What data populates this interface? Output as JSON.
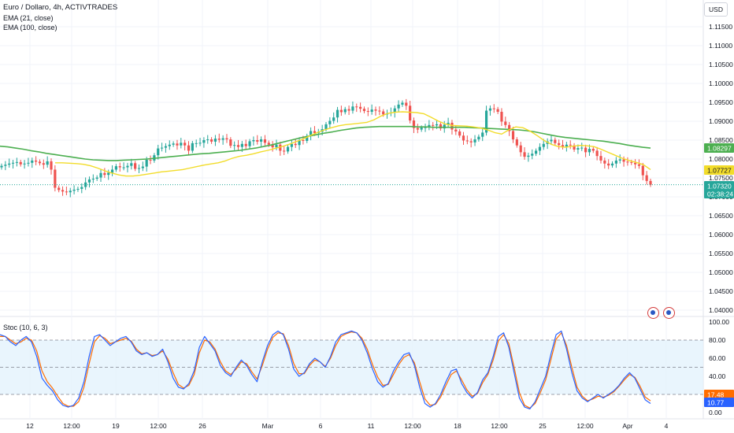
{
  "header": {
    "symbol_line": "Euro / Dollaro, 4h, ACTIVTRADES",
    "indicator_1": "EMA (21, close)",
    "indicator_2": "EMA (100, close)",
    "currency": "USD",
    "stoc_label": "Stoc (10, 6, 3)"
  },
  "colors": {
    "up": "#26a69a",
    "down": "#ef5350",
    "ema21": "#f2dc2a",
    "ema100": "#4caf50",
    "stoc_k": "#2962ff",
    "stoc_d": "#ff6d00",
    "band_fill": "#e3f2fd"
  },
  "chart_data": [
    {
      "type": "candlestick",
      "title": "Euro / Dollaro, 4h, ACTIVTRADES",
      "y_axis": {
        "min": 1.035,
        "max": 1.12,
        "ticks": [
          "1.11500",
          "1.11000",
          "1.10500",
          "1.10000",
          "1.09500",
          "1.09000",
          "1.08500",
          "1.08000",
          "1.07500",
          "1.07000",
          "1.06500",
          "1.06000",
          "1.05500",
          "1.05000",
          "1.04500",
          "1.04000"
        ],
        "tick_values": [
          1.115,
          1.11,
          1.105,
          1.1,
          1.095,
          1.09,
          1.085,
          1.08,
          1.075,
          1.07,
          1.065,
          1.06,
          1.055,
          1.05,
          1.045,
          1.04
        ]
      },
      "x_axis": {
        "labels": [
          "12",
          "12:00",
          "19",
          "12:00",
          "26",
          "Mar",
          "6",
          "11",
          "12:00",
          "18",
          "12:00",
          "25",
          "12:00",
          "Apr",
          "4"
        ],
        "label_index": [
          2,
          8,
          13,
          18,
          23,
          29,
          35,
          40,
          46,
          51,
          56,
          61,
          66,
          71,
          76
        ]
      },
      "ohlc_close_path": [
        1.0782,
        1.0785,
        1.0788,
        1.079,
        1.0792,
        1.0786,
        1.0788,
        1.079,
        1.0796,
        1.0793,
        1.0789,
        1.0785,
        1.0794,
        1.0772,
        1.0724,
        1.0718,
        1.0714,
        1.0712,
        1.0716,
        1.0719,
        1.0721,
        1.0726,
        1.0738,
        1.0746,
        1.0748,
        1.0751,
        1.0763,
        1.0758,
        1.0764,
        1.0772,
        1.0781,
        1.0778,
        1.0778,
        1.0782,
        1.0789,
        1.0774,
        1.0776,
        1.078,
        1.0798,
        1.0796,
        1.081,
        1.0828,
        1.083,
        1.0834,
        1.0838,
        1.0841,
        1.0836,
        1.0843,
        1.0836,
        1.0822,
        1.0842,
        1.0842,
        1.0843,
        1.085,
        1.0852,
        1.0846,
        1.0854,
        1.0851,
        1.0855,
        1.0852,
        1.0835,
        1.0837,
        1.0832,
        1.084,
        1.0834,
        1.0847,
        1.085,
        1.0846,
        1.0852,
        1.0843,
        1.0838,
        1.0831,
        1.0838,
        1.0822,
        1.082,
        1.0832,
        1.084,
        1.0837,
        1.085,
        1.0848,
        1.0861,
        1.0874,
        1.0869,
        1.0872,
        1.0879,
        1.0892,
        1.0901,
        1.091,
        1.093,
        1.0924,
        1.0932,
        1.0928,
        1.0939,
        1.0938,
        1.0933,
        1.0927,
        1.0925,
        1.0931,
        1.0928,
        1.0926,
        1.0918,
        1.0921,
        1.0923,
        1.0934,
        1.0944,
        1.0949,
        1.0941,
        1.0902,
        1.0882,
        1.0878,
        1.0883,
        1.0884,
        1.089,
        1.0889,
        1.0892,
        1.0881,
        1.0891,
        1.0896,
        1.0878,
        1.0873,
        1.0862,
        1.0849,
        1.0847,
        1.0844,
        1.0852,
        1.0859,
        1.087,
        1.0928,
        1.0934,
        1.0932,
        1.0925,
        1.0899,
        1.089,
        1.0874,
        1.0852,
        1.0836,
        1.0818,
        1.0806,
        1.0809,
        1.0814,
        1.0822,
        1.0832,
        1.084,
        1.0847,
        1.0851,
        1.0842,
        1.0837,
        1.0833,
        1.0838,
        1.0836,
        1.0825,
        1.0829,
        1.083,
        1.0818,
        1.0827,
        1.0822,
        1.0808,
        1.0796,
        1.0788,
        1.0783,
        1.0788,
        1.0796,
        1.0799,
        1.0793,
        1.0792,
        1.079,
        1.0786,
        1.0782,
        1.0757,
        1.0742,
        1.0732
      ],
      "series": [
        {
          "name": "EMA (21, close)",
          "values": [
            1.079,
            1.079,
            1.0789,
            1.0788,
            1.0786,
            1.0782,
            1.0776,
            1.0769,
            1.0763,
            1.0758,
            1.0755,
            1.0755,
            1.0757,
            1.076,
            1.0763,
            1.0766,
            1.0768,
            1.077,
            1.0772,
            1.0776,
            1.078,
            1.0784,
            1.0787,
            1.079,
            1.0795,
            1.0802,
            1.0807,
            1.081,
            1.0814,
            1.0819,
            1.0823,
            1.0828,
            1.0833,
            1.0839,
            1.0846,
            1.0853,
            1.0862,
            1.087,
            1.0877,
            1.0883,
            1.0888,
            1.0891,
            1.0893,
            1.0895,
            1.0897,
            1.0904,
            1.0914,
            1.0921,
            1.0924,
            1.0925,
            1.0924,
            1.0923,
            1.092,
            1.0911,
            1.0901,
            1.0893,
            1.0889,
            1.0888,
            1.0887,
            1.0885,
            1.0882,
            1.0877,
            1.087,
            1.0866,
            1.0877,
            1.0885,
            1.0883,
            1.0874,
            1.0862,
            1.0849,
            1.0839,
            1.0833,
            1.0831,
            1.0834,
            1.0836,
            1.0835,
            1.0833,
            1.0826,
            1.0818,
            1.081,
            1.0802,
            1.0796,
            1.0791,
            1.0785,
            1.0772
          ]
        },
        {
          "name": "EMA (100, close)",
          "values": [
            1.0834,
            1.0832,
            1.0829,
            1.0826,
            1.0822,
            1.0819,
            1.0815,
            1.0812,
            1.0809,
            1.0806,
            1.0803,
            1.08,
            1.0798,
            1.0797,
            1.0796,
            1.0796,
            1.0797,
            1.0798,
            1.0799,
            1.08,
            1.0802,
            1.0804,
            1.0806,
            1.0808,
            1.081,
            1.0812,
            1.0814,
            1.0815,
            1.0817,
            1.0819,
            1.0821,
            1.0823,
            1.0826,
            1.0829,
            1.0833,
            1.0837,
            1.0842,
            1.0847,
            1.0852,
            1.0857,
            1.0861,
            1.0865,
            1.0869,
            1.0872,
            1.0876,
            1.0879,
            1.0882,
            1.0884,
            1.0885,
            1.0886,
            1.0886,
            1.0886,
            1.0886,
            1.0886,
            1.0885,
            1.0885,
            1.0884,
            1.0884,
            1.0884,
            1.0884,
            1.0884,
            1.0883,
            1.0882,
            1.0881,
            1.088,
            1.0879,
            1.0878,
            1.0877,
            1.0875,
            1.0872,
            1.0868,
            1.0864,
            1.086,
            1.0857,
            1.0855,
            1.0853,
            1.0851,
            1.0849,
            1.0847,
            1.0844,
            1.0841,
            1.0837,
            1.0834,
            1.0831,
            1.0829
          ]
        }
      ],
      "price_labels": [
        {
          "text": "1.08297",
          "value": 1.08297,
          "color": "#4caf50"
        },
        {
          "text": "1.07727",
          "value": 1.07727,
          "color": "#f2dc2a"
        },
        {
          "text": "1.07320",
          "value": 1.0732,
          "color": "#26a69a"
        },
        {
          "text": "02:38:24",
          "value": 1.0728,
          "color": "#26a69a"
        }
      ],
      "last_price": 1.0732
    },
    {
      "type": "line",
      "title": "Stoc (10, 6, 3)",
      "y_axis": {
        "min": 0,
        "max": 100,
        "ticks": [
          "100.00",
          "80.00",
          "60.00",
          "40.00",
          "20.00",
          "0.00"
        ],
        "tick_values": [
          100,
          80,
          60,
          40,
          20,
          0
        ]
      },
      "bands": [
        80,
        50,
        20
      ],
      "series": [
        {
          "name": "%K",
          "values": [
            86,
            84,
            78,
            74,
            80,
            84,
            78,
            62,
            38,
            30,
            24,
            14,
            8,
            6,
            8,
            16,
            34,
            62,
            84,
            86,
            80,
            74,
            78,
            82,
            84,
            78,
            68,
            64,
            66,
            62,
            64,
            70,
            56,
            38,
            28,
            26,
            32,
            46,
            72,
            84,
            76,
            68,
            52,
            44,
            40,
            50,
            58,
            52,
            42,
            34,
            56,
            74,
            86,
            90,
            86,
            70,
            48,
            40,
            44,
            54,
            60,
            56,
            50,
            62,
            78,
            86,
            88,
            90,
            88,
            80,
            66,
            48,
            34,
            28,
            32,
            46,
            56,
            64,
            66,
            52,
            28,
            10,
            6,
            10,
            20,
            34,
            46,
            48,
            32,
            22,
            16,
            22,
            36,
            44,
            62,
            84,
            88,
            72,
            44,
            16,
            6,
            4,
            12,
            26,
            40,
            64,
            86,
            90,
            70,
            44,
            24,
            16,
            12,
            16,
            20,
            16,
            20,
            24,
            30,
            38,
            44,
            38,
            26,
            14,
            10
          ]
        },
        {
          "name": "%D",
          "values": [
            84,
            84,
            80,
            76,
            78,
            82,
            80,
            68,
            46,
            34,
            27,
            18,
            10,
            7,
            7,
            12,
            28,
            54,
            78,
            85,
            82,
            76,
            78,
            80,
            82,
            79,
            70,
            65,
            66,
            63,
            64,
            68,
            59,
            44,
            31,
            27,
            30,
            42,
            66,
            80,
            78,
            70,
            56,
            46,
            42,
            48,
            56,
            54,
            45,
            37,
            52,
            70,
            83,
            88,
            87,
            74,
            54,
            43,
            43,
            52,
            58,
            56,
            51,
            60,
            74,
            84,
            87,
            89,
            88,
            82,
            70,
            53,
            39,
            30,
            31,
            42,
            53,
            61,
            64,
            55,
            34,
            15,
            8,
            9,
            17,
            30,
            42,
            46,
            36,
            25,
            18,
            21,
            33,
            42,
            58,
            79,
            86,
            76,
            50,
            22,
            8,
            5,
            10,
            22,
            36,
            58,
            81,
            88,
            74,
            50,
            28,
            18,
            13,
            15,
            18,
            17,
            19,
            23,
            29,
            36,
            42,
            39,
            29,
            17,
            13
          ]
        }
      ],
      "price_labels": [
        {
          "text": "17.48",
          "value": 17.48,
          "color": "#ff6d00"
        },
        {
          "text": "10.77",
          "value": 10.77,
          "color": "#2962ff"
        }
      ]
    }
  ]
}
